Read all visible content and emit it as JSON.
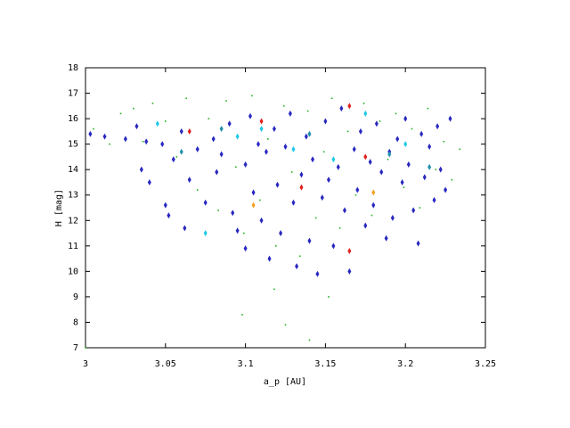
{
  "chart_data": {
    "type": "scatter",
    "xlabel": "a_p [AU]",
    "ylabel": "H [mag]",
    "xlim": [
      3,
      3.25
    ],
    "ylim": [
      7,
      18
    ],
    "xticks": [
      3,
      3.05,
      3.1,
      3.15,
      3.2,
      3.25
    ],
    "yticks": [
      7,
      8,
      9,
      10,
      11,
      12,
      13,
      14,
      15,
      16,
      17,
      18
    ],
    "grid": false,
    "series": [
      {
        "color": "#20b020",
        "marker": "dot",
        "x": [
          3.005,
          3.015,
          3.022,
          3.03,
          3.036,
          3.042,
          3.05,
          3.057,
          3.063,
          3.07,
          3.077,
          3.083,
          3.088,
          3.094,
          3.099,
          3.104,
          3.109,
          3.114,
          3.119,
          3.124,
          3.129,
          3.134,
          3.139,
          3.144,
          3.149,
          3.154,
          3.159,
          3.164,
          3.169,
          3.174,
          3.179,
          3.184,
          3.189,
          3.194,
          3.199,
          3.204,
          3.209,
          3.214,
          3.219,
          3.224,
          3.229,
          3.234,
          3.125,
          3.14,
          3.0,
          3.118,
          3.152,
          3.098
        ],
        "y": [
          15.6,
          15.0,
          16.2,
          16.4,
          15.1,
          16.6,
          15.9,
          14.5,
          16.8,
          13.2,
          16.0,
          12.4,
          16.7,
          14.1,
          11.5,
          16.9,
          12.8,
          15.2,
          11.0,
          16.5,
          13.9,
          10.6,
          16.3,
          12.1,
          14.7,
          16.8,
          11.7,
          15.5,
          13.0,
          16.6,
          12.2,
          15.9,
          14.4,
          16.2,
          13.3,
          15.6,
          12.5,
          16.4,
          14.0,
          15.1,
          13.6,
          14.8,
          7.9,
          7.3,
          7.0,
          9.3,
          9.0,
          8.3
        ]
      },
      {
        "color": "#2828c0",
        "marker": "diamond",
        "x": [
          3.003,
          3.012,
          3.025,
          3.032,
          3.035,
          3.038,
          3.04,
          3.048,
          3.05,
          3.052,
          3.055,
          3.06,
          3.062,
          3.065,
          3.07,
          3.075,
          3.08,
          3.082,
          3.085,
          3.09,
          3.092,
          3.095,
          3.1,
          3.1,
          3.103,
          3.105,
          3.108,
          3.11,
          3.113,
          3.115,
          3.118,
          3.12,
          3.122,
          3.125,
          3.128,
          3.13,
          3.132,
          3.135,
          3.138,
          3.14,
          3.142,
          3.145,
          3.148,
          3.15,
          3.152,
          3.155,
          3.158,
          3.16,
          3.162,
          3.165,
          3.168,
          3.17,
          3.172,
          3.175,
          3.178,
          3.18,
          3.182,
          3.185,
          3.188,
          3.19,
          3.192,
          3.195,
          3.198,
          3.2,
          3.202,
          3.205,
          3.208,
          3.21,
          3.212,
          3.215,
          3.218,
          3.22,
          3.222,
          3.225,
          3.228
        ],
        "y": [
          15.4,
          15.3,
          15.2,
          15.7,
          14.0,
          15.1,
          13.5,
          15.0,
          12.6,
          12.2,
          14.4,
          15.5,
          11.7,
          13.6,
          14.8,
          12.7,
          15.2,
          13.9,
          14.6,
          15.8,
          12.3,
          11.6,
          14.2,
          10.9,
          16.1,
          13.1,
          15.0,
          12.0,
          14.7,
          10.5,
          15.6,
          13.4,
          11.5,
          14.9,
          16.2,
          12.7,
          10.2,
          13.8,
          15.3,
          11.2,
          14.4,
          9.9,
          12.9,
          15.9,
          13.6,
          11.0,
          14.1,
          16.4,
          12.4,
          10.0,
          14.8,
          13.2,
          15.5,
          11.8,
          14.3,
          12.6,
          15.8,
          13.9,
          11.3,
          14.7,
          12.1,
          15.2,
          13.5,
          16.0,
          14.2,
          12.4,
          11.1,
          15.4,
          13.7,
          14.9,
          12.8,
          15.7,
          14.0,
          13.2,
          16.0
        ]
      },
      {
        "color": "#20c8e8",
        "marker": "diamond",
        "x": [
          3.045,
          3.075,
          3.095,
          3.13,
          3.155,
          3.175,
          3.2,
          3.11
        ],
        "y": [
          15.8,
          11.5,
          15.3,
          14.8,
          14.4,
          16.2,
          15.0,
          15.6
        ]
      },
      {
        "color": "#2090a8",
        "marker": "diamond",
        "x": [
          3.085,
          3.14,
          3.19,
          3.06,
          3.215
        ],
        "y": [
          15.6,
          15.4,
          14.6,
          14.7,
          14.1
        ]
      },
      {
        "color": "#e02020",
        "marker": "diamond",
        "x": [
          3.11,
          3.135,
          3.165,
          3.175,
          3.165,
          3.065
        ],
        "y": [
          15.9,
          13.3,
          16.5,
          14.5,
          10.8,
          15.5
        ]
      },
      {
        "color": "#f0a020",
        "marker": "diamond",
        "x": [
          3.105,
          3.18
        ],
        "y": [
          12.6,
          13.1
        ]
      }
    ]
  }
}
